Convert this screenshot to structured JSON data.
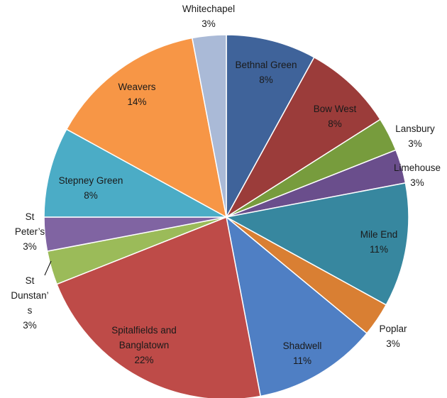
{
  "chart_data": {
    "type": "pie",
    "title": "",
    "legend": "none",
    "slices": [
      {
        "label": "Bethnal Green",
        "value": 8,
        "value_label": "8%",
        "color": "#3F639A"
      },
      {
        "label": "Bow West",
        "value": 8,
        "value_label": "8%",
        "color": "#9B3C3A"
      },
      {
        "label": "Lansbury",
        "value": 3,
        "value_label": "3%",
        "color": "#779C3D"
      },
      {
        "label": "Limehouse",
        "value": 3,
        "value_label": "3%",
        "color": "#6A4E8C"
      },
      {
        "label": "Mile End",
        "value": 11,
        "value_label": "11%",
        "color": "#37879F"
      },
      {
        "label": "Poplar",
        "value": 3,
        "value_label": "3%",
        "color": "#D97F33"
      },
      {
        "label": "Shadwell",
        "value": 11,
        "value_label": "11%",
        "color": "#4F7FC4"
      },
      {
        "label": "Spitalfields and Banglatown",
        "value": 22,
        "value_label": "22%",
        "color": "#BE4B48"
      },
      {
        "label": "St Dunstan’s",
        "value": 3,
        "value_label": "3%",
        "color": "#9BBB59"
      },
      {
        "label": "St Peter’s",
        "value": 3,
        "value_label": "3%",
        "color": "#8064A2"
      },
      {
        "label": "Stepney Green",
        "value": 8,
        "value_label": "8%",
        "color": "#4BACC6"
      },
      {
        "label": "Weavers",
        "value": 14,
        "value_label": "14%",
        "color": "#F79646"
      },
      {
        "label": "Whitechapel",
        "value": 3,
        "value_label": "3%",
        "color": "#AABAD7"
      }
    ]
  }
}
